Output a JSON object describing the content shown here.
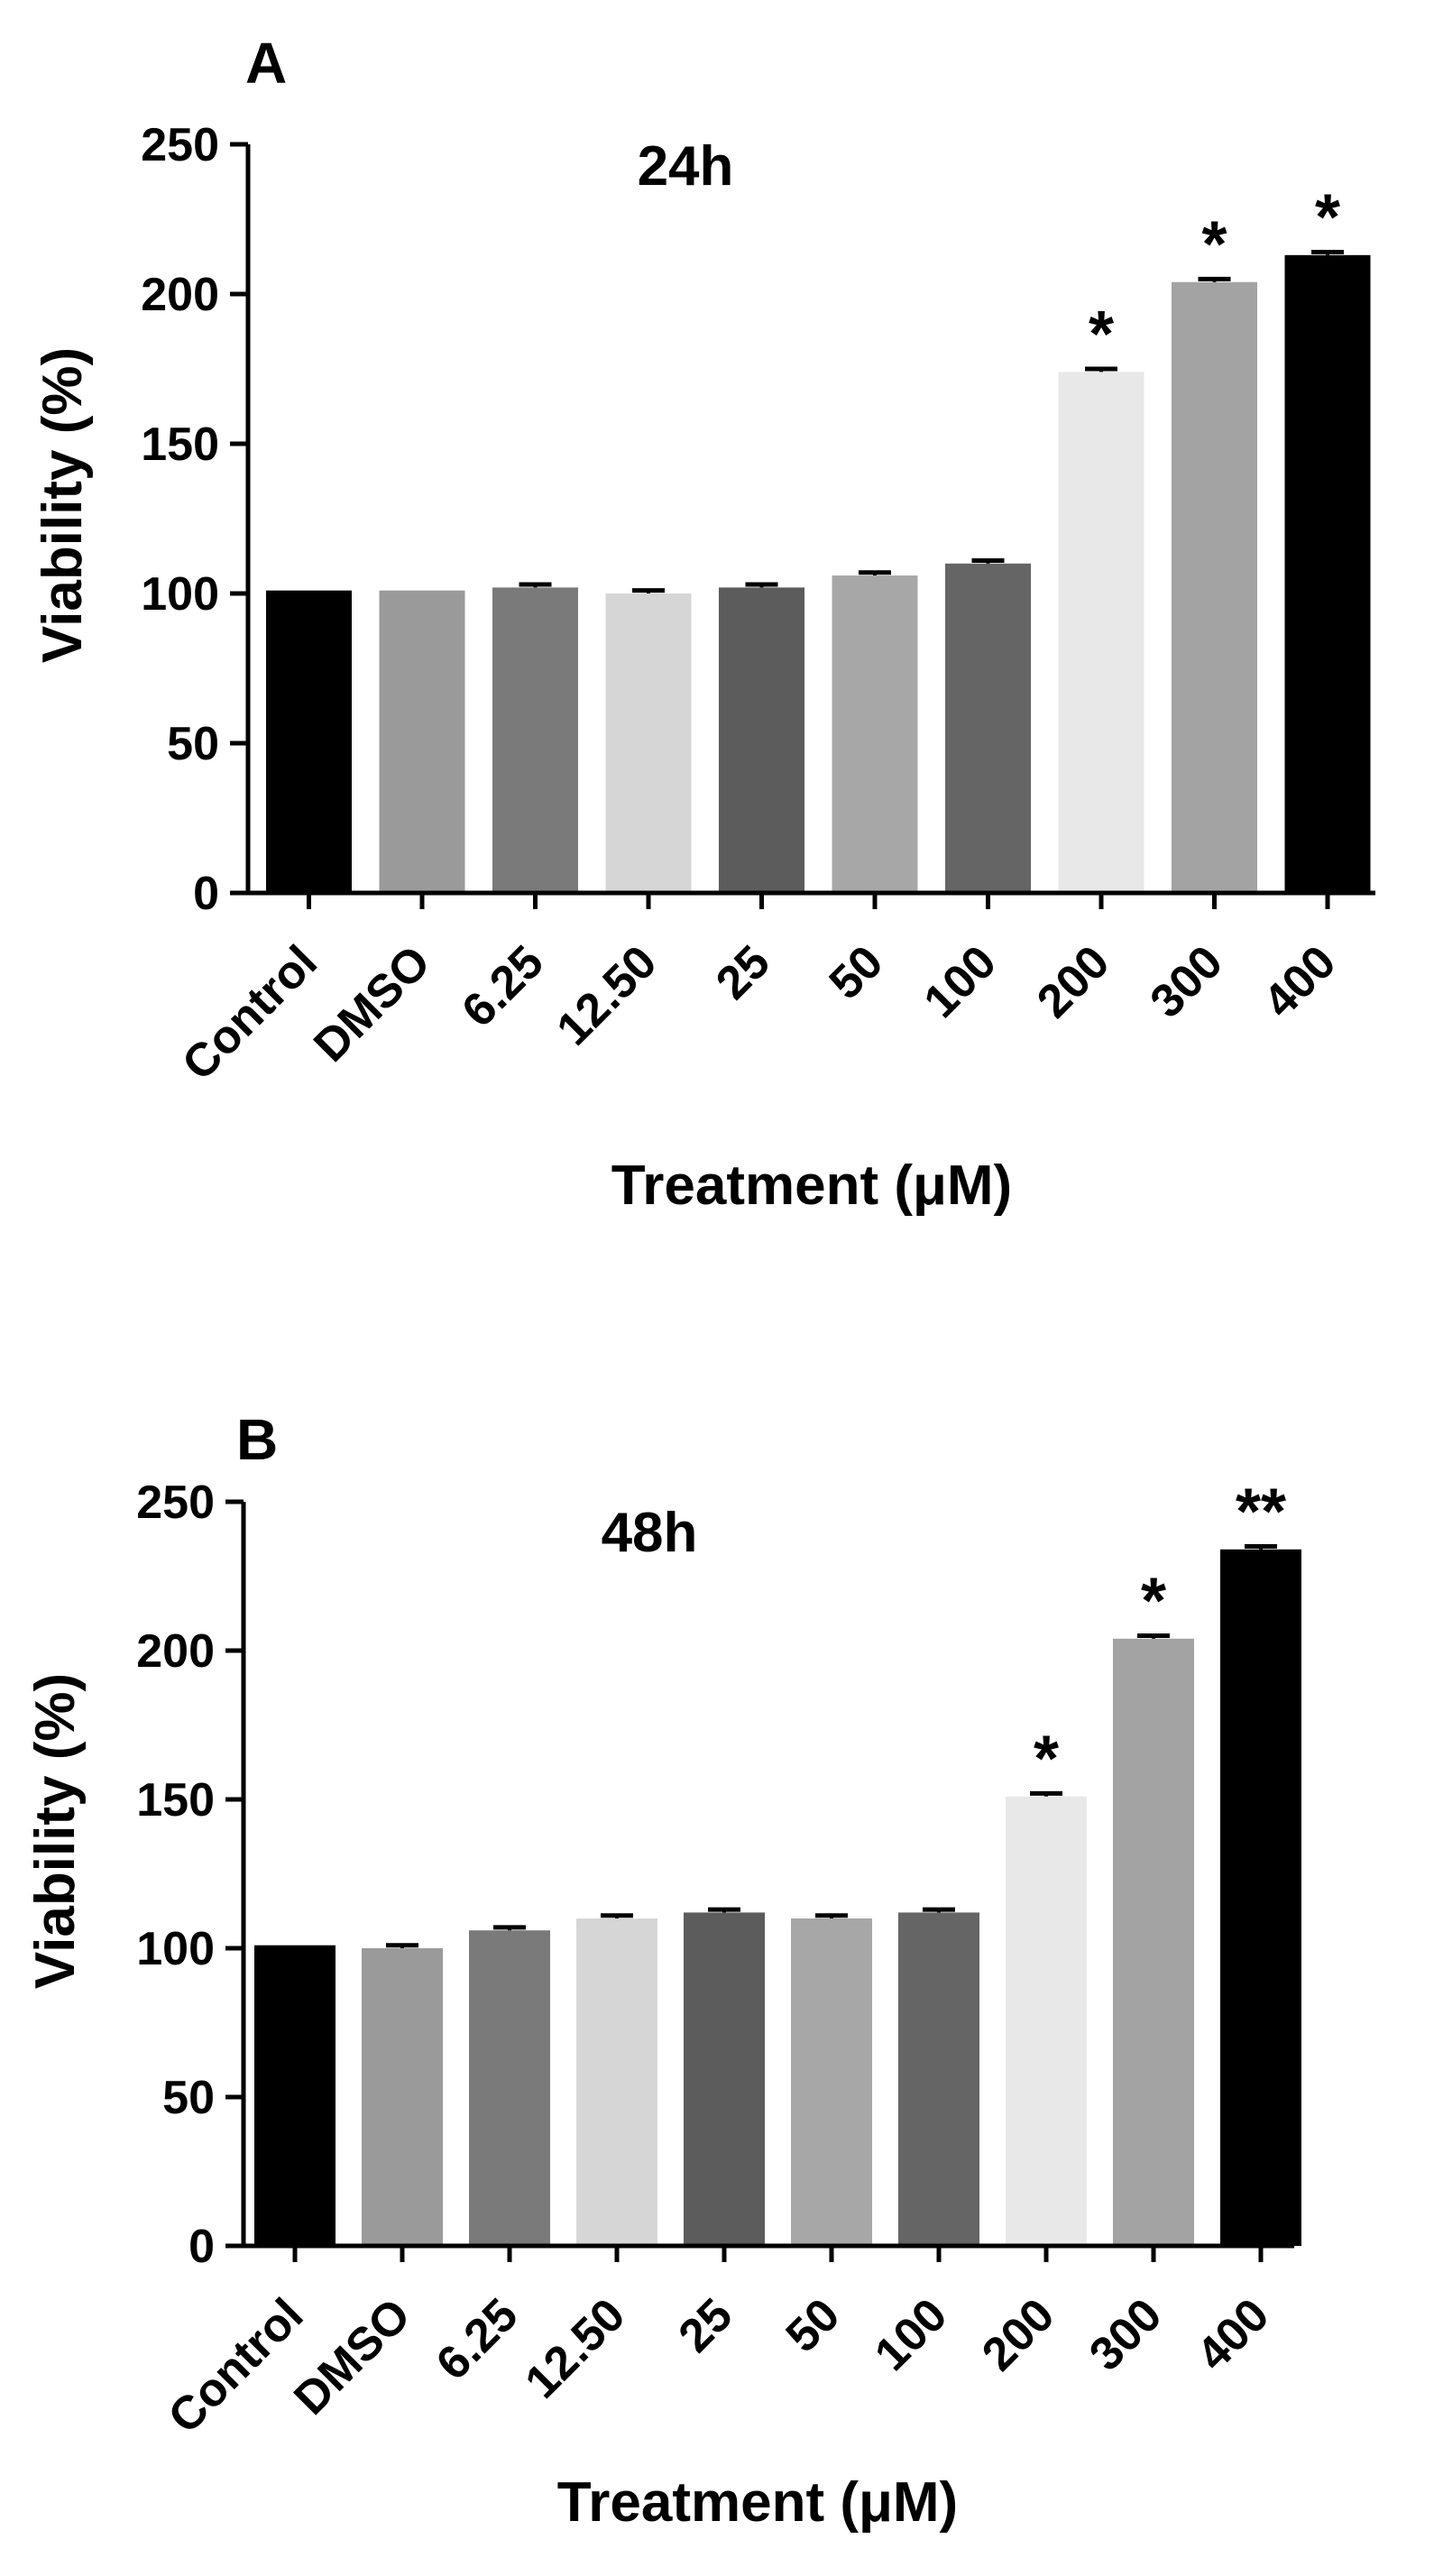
{
  "chart_data": [
    {
      "type": "bar",
      "panel_label": "A",
      "title": "24h",
      "xlabel": "Treatment (μM)",
      "ylabel": "Viability (%)",
      "ylim": [
        0,
        250
      ],
      "yticks": [
        0,
        50,
        100,
        150,
        200,
        250
      ],
      "grid": false,
      "legend": "none",
      "categories": [
        "Control",
        "DMSO",
        "6.25",
        "12.50",
        "25",
        "50",
        "100",
        "200",
        "300",
        "400"
      ],
      "values": [
        101,
        101,
        102,
        100,
        102,
        106,
        110,
        174,
        204,
        213
      ],
      "errors": [
        0,
        0,
        1,
        1,
        1,
        1,
        1,
        1,
        1,
        1
      ],
      "significance": [
        "",
        "",
        "",
        "",
        "",
        "",
        "",
        "*",
        "*",
        "*"
      ],
      "colors": [
        "#000000",
        "#9a9a9a",
        "#7a7a7a",
        "#d6d6d6",
        "#5c5c5c",
        "#a7a7a7",
        "#656565",
        "#e8e8e8",
        "#a3a3a3",
        "#000000"
      ]
    },
    {
      "type": "bar",
      "panel_label": "B",
      "title": "48h",
      "xlabel": "Treatment (μM)",
      "ylabel": "Viability (%)",
      "ylim": [
        0,
        250
      ],
      "yticks": [
        0,
        50,
        100,
        150,
        200,
        250
      ],
      "grid": false,
      "legend": "none",
      "categories": [
        "Control",
        "DMSO",
        "6.25",
        "12.50",
        "25",
        "50",
        "100",
        "200",
        "300",
        "400"
      ],
      "values": [
        101,
        100,
        106,
        110,
        112,
        110,
        112,
        151,
        204,
        234
      ],
      "errors": [
        0,
        1,
        1,
        1,
        1,
        1,
        1,
        1,
        1,
        1
      ],
      "significance": [
        "",
        "",
        "",
        "",
        "",
        "",
        "",
        "*",
        "*",
        "**"
      ],
      "colors": [
        "#000000",
        "#9a9a9a",
        "#7a7a7a",
        "#d6d6d6",
        "#5c5c5c",
        "#a7a7a7",
        "#656565",
        "#e8e8e8",
        "#a3a3a3",
        "#000000"
      ]
    }
  ]
}
